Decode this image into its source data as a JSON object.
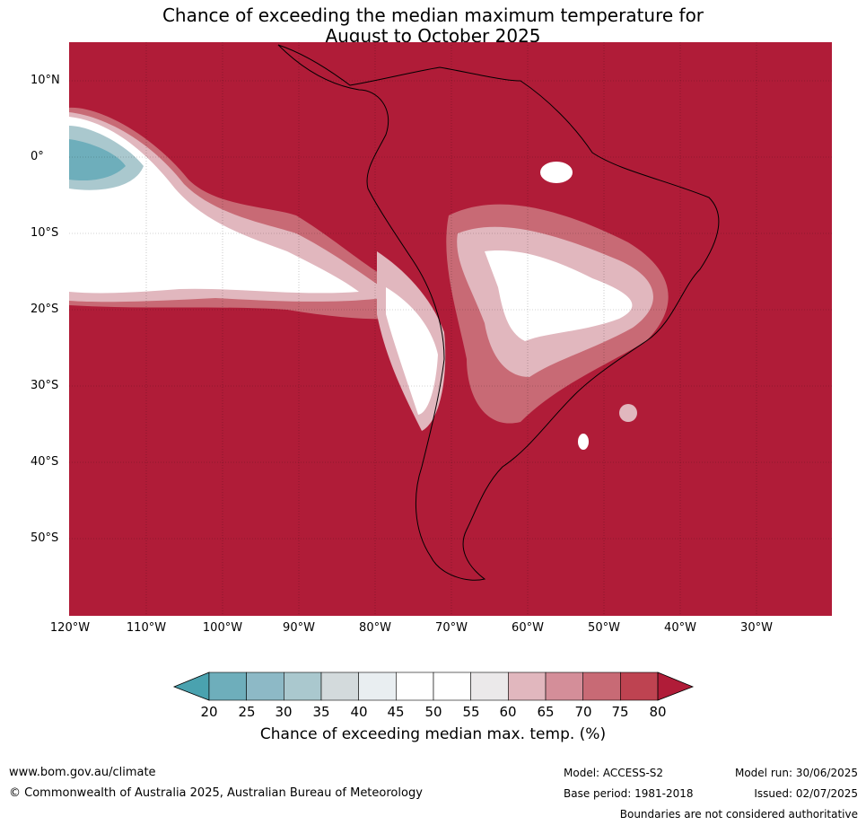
{
  "title": {
    "line1": "Chance of exceeding the median maximum temperature for",
    "line2": "August to October 2025"
  },
  "map": {
    "latitude_labels": [
      "10°N",
      "0°",
      "10°S",
      "20°S",
      "30°S",
      "40°S",
      "50°S"
    ],
    "longitude_labels": [
      "120°W",
      "110°W",
      "100°W",
      "90°W",
      "80°W",
      "70°W",
      "60°W",
      "50°W",
      "40°W",
      "30°W"
    ],
    "background_color": "#b01c38"
  },
  "colorbar": {
    "ticks": [
      "20",
      "25",
      "30",
      "35",
      "40",
      "45",
      "50",
      "55",
      "60",
      "65",
      "70",
      "75",
      "80"
    ],
    "colors": [
      "#4aa2af",
      "#6eaebb",
      "#8db9c6",
      "#aac8ce",
      "#d3dadc",
      "#e9eef1",
      "#ffffff",
      "#ffffff",
      "#ebe9ea",
      "#e1b7be",
      "#d48e99",
      "#c86a75",
      "#be4351",
      "#b01c38"
    ],
    "label": "Chance of exceeding median max. temp. (%)"
  },
  "footer": {
    "url": "www.bom.gov.au/climate",
    "copyright": "© Commonwealth of Australia 2025, Australian Bureau of Meteorology",
    "model": "Model: ACCESS-S2",
    "base_period": "Base period: 1981-2018",
    "model_run": "Model run: 30/06/2025",
    "issued": "Issued: 02/07/2025",
    "disclaimer": "Boundaries are not considered authoritative"
  }
}
